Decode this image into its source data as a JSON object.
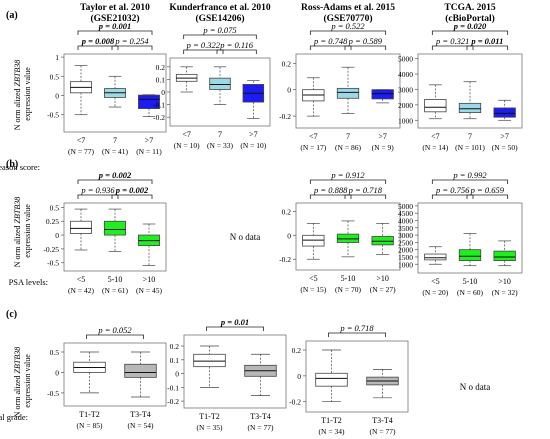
{
  "panels": [
    {
      "label": "(a)",
      "row_label": "G leason score:"
    },
    {
      "label": "(b)",
      "row_label": "PSA levels:"
    },
    {
      "label": "(c)",
      "row_label": "Pathological grade:"
    }
  ],
  "y_title": {
    "prefix": "N orm alized ",
    "gene": "ZBTB38",
    "suffix": "expression value"
  },
  "no_data_label": "N o data",
  "colors": {
    "white": "#ffffff",
    "light_blue": "#9cd9e6",
    "blue": "#1c1cf0",
    "green": "#1fef1f",
    "gray": "#b7b7b7",
    "box_stroke": "#444444"
  },
  "chart_data": [
    {
      "type": "box",
      "panel": "(a)",
      "title": "Taylor et al. 2010",
      "subtitle": "(GSE21032)",
      "categories": [
        "<7",
        "7",
        ">7"
      ],
      "ns": [
        "(N = 77)",
        "(N = 41)",
        "(N = 11)"
      ],
      "fills": [
        "#ffffff",
        "#9cd9e6",
        "#1c1cf0"
      ],
      "ylim": [
        -0.95,
        1.08
      ],
      "yticks": [
        -0.5,
        0,
        0.5,
        1
      ],
      "boxes": [
        {
          "wlo": -0.5,
          "q1": 0.07,
          "med": 0.21,
          "q3": 0.36,
          "whi": 0.78
        },
        {
          "wlo": -0.3,
          "q1": -0.05,
          "med": 0.07,
          "q3": 0.18,
          "whi": 0.5
        },
        {
          "wlo": -0.55,
          "q1": -0.34,
          "med": -0.1,
          "q3": 0.01,
          "whi": 0.02
        }
      ],
      "brackets": [
        {
          "from": 0,
          "to": 2,
          "level": 2,
          "text": "p = 0.001",
          "bold": true
        },
        {
          "from": 0,
          "to": 1,
          "level": 1,
          "text": "p = 0.008",
          "bold": true
        },
        {
          "from": 1,
          "to": 2,
          "level": 1,
          "text": "p = 0.254",
          "bold": false
        }
      ]
    },
    {
      "type": "box",
      "panel": "(a)",
      "title": "Kunderfranco et al. 2010",
      "subtitle": "(GSE14206)",
      "categories": [
        "<7",
        "7",
        ">7"
      ],
      "ns": [
        "(N = 10)",
        "(N = 33)",
        "(N = 10)"
      ],
      "fills": [
        "#ffffff",
        "#9cd9e6",
        "#1c1cf0"
      ],
      "ylim": [
        -0.27,
        0.27
      ],
      "yticks": [
        -0.2,
        -0.1,
        0,
        0.1,
        0.2
      ],
      "boxes": [
        {
          "wlo": 0.0,
          "q1": 0.085,
          "med": 0.11,
          "q3": 0.14,
          "whi": 0.2
        },
        {
          "wlo": -0.1,
          "q1": 0.02,
          "med": 0.06,
          "q3": 0.11,
          "whi": 0.2
        },
        {
          "wlo": -0.21,
          "q1": -0.08,
          "med": -0.01,
          "q3": 0.06,
          "whi": 0.09
        }
      ],
      "brackets": [
        {
          "from": 0,
          "to": 2,
          "level": 2,
          "text": "p = 0.075",
          "bold": false
        },
        {
          "from": 0,
          "to": 1,
          "level": 1,
          "text": "p = 0.322",
          "bold": false
        },
        {
          "from": 1,
          "to": 2,
          "level": 1,
          "text": "p = 0.116",
          "bold": false
        }
      ]
    },
    {
      "type": "box",
      "panel": "(a)",
      "title": "Ross-Adams et al. 2015",
      "subtitle": "(GSE70770)",
      "categories": [
        "<7",
        "7",
        ">7"
      ],
      "ns": [
        "(N = 17)",
        "(N = 86)",
        "(N = 9)"
      ],
      "fills": [
        "#ffffff",
        "#9cd9e6",
        "#1c1cf0"
      ],
      "ylim": [
        -0.29,
        0.27
      ],
      "yticks": [
        -0.2,
        0,
        0.2
      ],
      "boxes": [
        {
          "wlo": -0.2,
          "q1": -0.085,
          "med": -0.04,
          "q3": 0.0,
          "whi": 0.09
        },
        {
          "wlo": -0.18,
          "q1": -0.065,
          "med": -0.02,
          "q3": 0.01,
          "whi": 0.17
        },
        {
          "wlo": -0.1,
          "q1": -0.07,
          "med": -0.03,
          "q3": 0.0,
          "whi": 0.0
        }
      ],
      "brackets": [
        {
          "from": 0,
          "to": 2,
          "level": 2,
          "text": "p = 0.522",
          "bold": false
        },
        {
          "from": 0,
          "to": 1,
          "level": 1,
          "text": "p = 0.748",
          "bold": false
        },
        {
          "from": 1,
          "to": 2,
          "level": 1,
          "text": "p = 0.589",
          "bold": false
        }
      ]
    },
    {
      "type": "box",
      "panel": "(a)",
      "title": "TCGA. 2015",
      "subtitle": "(cBioPortal)",
      "categories": [
        "<7",
        "7",
        ">7"
      ],
      "ns": [
        "(N = 14)",
        "(N = 101)",
        "(N = 50)"
      ],
      "fills": [
        "#ffffff",
        "#9cd9e6",
        "#1c1cf0"
      ],
      "ylim": [
        500,
        5300
      ],
      "yticks": [
        1000,
        2000,
        3000,
        4000,
        5000
      ],
      "boxes": [
        {
          "wlo": 1100,
          "q1": 1550,
          "med": 1850,
          "q3": 2350,
          "whi": 3300
        },
        {
          "wlo": 1100,
          "q1": 1500,
          "med": 1750,
          "q3": 2100,
          "whi": 3500
        },
        {
          "wlo": 1000,
          "q1": 1200,
          "med": 1450,
          "q3": 1800,
          "whi": 2300
        }
      ],
      "brackets": [
        {
          "from": 0,
          "to": 2,
          "level": 2,
          "text": "p = 0.020",
          "bold": true
        },
        {
          "from": 0,
          "to": 1,
          "level": 1,
          "text": "p = 0.321",
          "bold": false
        },
        {
          "from": 1,
          "to": 2,
          "level": 1,
          "text": "p = 0.011",
          "bold": true
        }
      ]
    },
    {
      "type": "box",
      "panel": "(b)",
      "title": "",
      "subtitle": "",
      "categories": [
        "<5",
        "5-10",
        ">10"
      ],
      "ns": [
        "(N = 42)",
        "(N = 61)",
        "(N = 45)"
      ],
      "fills": [
        "#ffffff",
        "#1fef1f",
        "#1fef1f"
      ],
      "ylim": [
        -0.65,
        0.58
      ],
      "yticks": [
        -0.5,
        -0.25,
        0,
        0.25,
        0.5
      ],
      "boxes": [
        {
          "wlo": -0.27,
          "q1": 0.03,
          "med": 0.12,
          "q3": 0.25,
          "whi": 0.47
        },
        {
          "wlo": -0.3,
          "q1": 0.0,
          "med": 0.1,
          "q3": 0.25,
          "whi": 0.47
        },
        {
          "wlo": -0.55,
          "q1": -0.19,
          "med": -0.1,
          "q3": 0.0,
          "whi": 0.2
        }
      ],
      "brackets": [
        {
          "from": 0,
          "to": 2,
          "level": 2,
          "text": "p = 0.002",
          "bold": true
        },
        {
          "from": 0,
          "to": 1,
          "level": 1,
          "text": "p = 0.936",
          "bold": false
        },
        {
          "from": 1,
          "to": 2,
          "level": 1,
          "text": "p = 0.002",
          "bold": true
        }
      ]
    },
    {
      "type": "box",
      "panel": "(b)",
      "title": "",
      "subtitle": "",
      "categories": [
        "<5",
        "5-10",
        ">10"
      ],
      "ns": [
        "(N = 15)",
        "(N = 70)",
        "(N = 27)"
      ],
      "fills": [
        "#ffffff",
        "#1fef1f",
        "#1fef1f"
      ],
      "ylim": [
        -0.29,
        0.27
      ],
      "yticks": [
        -0.2,
        0,
        0.2
      ],
      "boxes": [
        {
          "wlo": -0.2,
          "q1": -0.09,
          "med": -0.04,
          "q3": 0.0,
          "whi": 0.1
        },
        {
          "wlo": -0.18,
          "q1": -0.06,
          "med": -0.03,
          "q3": 0.01,
          "whi": 0.12
        },
        {
          "wlo": -0.16,
          "q1": -0.08,
          "med": -0.05,
          "q3": -0.01,
          "whi": 0.1
        }
      ],
      "brackets": [
        {
          "from": 0,
          "to": 2,
          "level": 2,
          "text": "p = 0.912",
          "bold": false
        },
        {
          "from": 0,
          "to": 1,
          "level": 1,
          "text": "p = 0.888",
          "bold": false
        },
        {
          "from": 1,
          "to": 2,
          "level": 1,
          "text": "p = 0.718",
          "bold": false
        }
      ]
    },
    {
      "type": "box",
      "panel": "(b)",
      "title": "",
      "subtitle": "",
      "categories": [
        "<5",
        "5-10",
        ">10"
      ],
      "ns": [
        "(N = 20)",
        "(N = 60)",
        "(N = 32)"
      ],
      "fills": [
        "#ffffff",
        "#1fef1f",
        "#1fef1f"
      ],
      "ylim": [
        400,
        5200
      ],
      "yticks": [
        1000,
        1500,
        2000,
        2500,
        3000,
        3500,
        4000,
        4500,
        5000
      ],
      "boxes": [
        {
          "wlo": 1000,
          "q1": 1300,
          "med": 1450,
          "q3": 1700,
          "whi": 2200
        },
        {
          "wlo": 900,
          "q1": 1250,
          "med": 1550,
          "q3": 2000,
          "whi": 3100
        },
        {
          "wlo": 900,
          "q1": 1250,
          "med": 1500,
          "q3": 1900,
          "whi": 2600
        }
      ],
      "brackets": [
        {
          "from": 0,
          "to": 2,
          "level": 2,
          "text": "p = 0.992",
          "bold": false
        },
        {
          "from": 0,
          "to": 1,
          "level": 1,
          "text": "p = 0.756",
          "bold": false
        },
        {
          "from": 1,
          "to": 2,
          "level": 1,
          "text": "p = 0.659",
          "bold": false
        }
      ]
    },
    {
      "type": "box",
      "panel": "(c)",
      "title": "",
      "subtitle": "",
      "categories": [
        "T1-T2",
        "T3-T4"
      ],
      "ns": [
        "(N = 85)",
        "(N = 54)"
      ],
      "fills": [
        "#ffffff",
        "#b7b7b7"
      ],
      "ylim": [
        -0.82,
        0.72
      ],
      "yticks": [
        -0.5,
        0,
        0.5
      ],
      "boxes": [
        {
          "wlo": -0.5,
          "q1": 0.0,
          "med": 0.12,
          "q3": 0.25,
          "whi": 0.5
        },
        {
          "wlo": -0.6,
          "q1": -0.12,
          "med": 0.0,
          "q3": 0.2,
          "whi": 0.5
        }
      ],
      "brackets": [
        {
          "from": 0,
          "to": 1,
          "level": 1,
          "text": "p = 0.052",
          "bold": false
        }
      ]
    },
    {
      "type": "box",
      "panel": "(c)",
      "title": "",
      "subtitle": "",
      "categories": [
        "T1-T2",
        "T3-T4"
      ],
      "ns": [
        "(N = 35)",
        "(N = 77)"
      ],
      "fills": [
        "#ffffff",
        "#b7b7b7"
      ],
      "ylim": [
        -0.25,
        0.28
      ],
      "yticks": [
        -0.2,
        -0.1,
        0,
        0.1,
        0.2
      ],
      "boxes": [
        {
          "wlo": -0.1,
          "q1": 0.05,
          "med": 0.09,
          "q3": 0.14,
          "whi": 0.2
        },
        {
          "wlo": -0.16,
          "q1": -0.02,
          "med": 0.02,
          "q3": 0.06,
          "whi": 0.14
        }
      ],
      "brackets": [
        {
          "from": 0,
          "to": 1,
          "level": 1,
          "text": "p = 0.01",
          "bold": true
        }
      ]
    },
    {
      "type": "box",
      "panel": "(c)",
      "title": "",
      "subtitle": "",
      "categories": [
        "T1-T2",
        "T3-T4"
      ],
      "ns": [
        "(N = 34)",
        "(N = 77)"
      ],
      "fills": [
        "#ffffff",
        "#b7b7b7"
      ],
      "ylim": [
        -0.28,
        0.27
      ],
      "yticks": [
        -0.2,
        0,
        0.2
      ],
      "boxes": [
        {
          "wlo": -0.2,
          "q1": -0.08,
          "med": -0.02,
          "q3": 0.02,
          "whi": 0.2
        },
        {
          "wlo": -0.17,
          "q1": -0.07,
          "med": -0.04,
          "q3": -0.01,
          "whi": 0.05
        }
      ],
      "brackets": [
        {
          "from": 0,
          "to": 1,
          "level": 1,
          "text": "p = 0.718",
          "bold": false
        }
      ]
    }
  ]
}
